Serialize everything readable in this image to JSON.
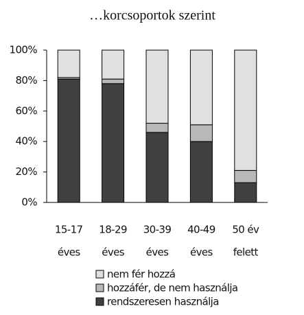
{
  "chart_data": {
    "type": "stacked_bar",
    "title": "…korcsoportok szerint",
    "categories": [
      [
        "15-17",
        "éves"
      ],
      [
        "18-29",
        "éves"
      ],
      [
        "30-39",
        "éves"
      ],
      [
        "40-49",
        "éves"
      ],
      [
        "50 év",
        "felett"
      ]
    ],
    "series": [
      {
        "name": "rendszeresen használja",
        "color": "#404040",
        "values": [
          81,
          78,
          46,
          40,
          13
        ]
      },
      {
        "name": "hozzáfér, de nem használja",
        "color": "#b8b8b8",
        "values": [
          1,
          3,
          6,
          11,
          8
        ]
      },
      {
        "name": "nem fér hozzá",
        "color": "#e0e0e0",
        "values": [
          18,
          19,
          48,
          49,
          79
        ]
      }
    ],
    "ylim": [
      0,
      100
    ],
    "yticks": [
      {
        "value": 0,
        "label": "0%"
      },
      {
        "value": 20,
        "label": "20%"
      },
      {
        "value": 40,
        "label": "40%"
      },
      {
        "value": 60,
        "label": "60%"
      },
      {
        "value": 80,
        "label": "80%"
      },
      {
        "value": 100,
        "label": "100%"
      }
    ]
  }
}
